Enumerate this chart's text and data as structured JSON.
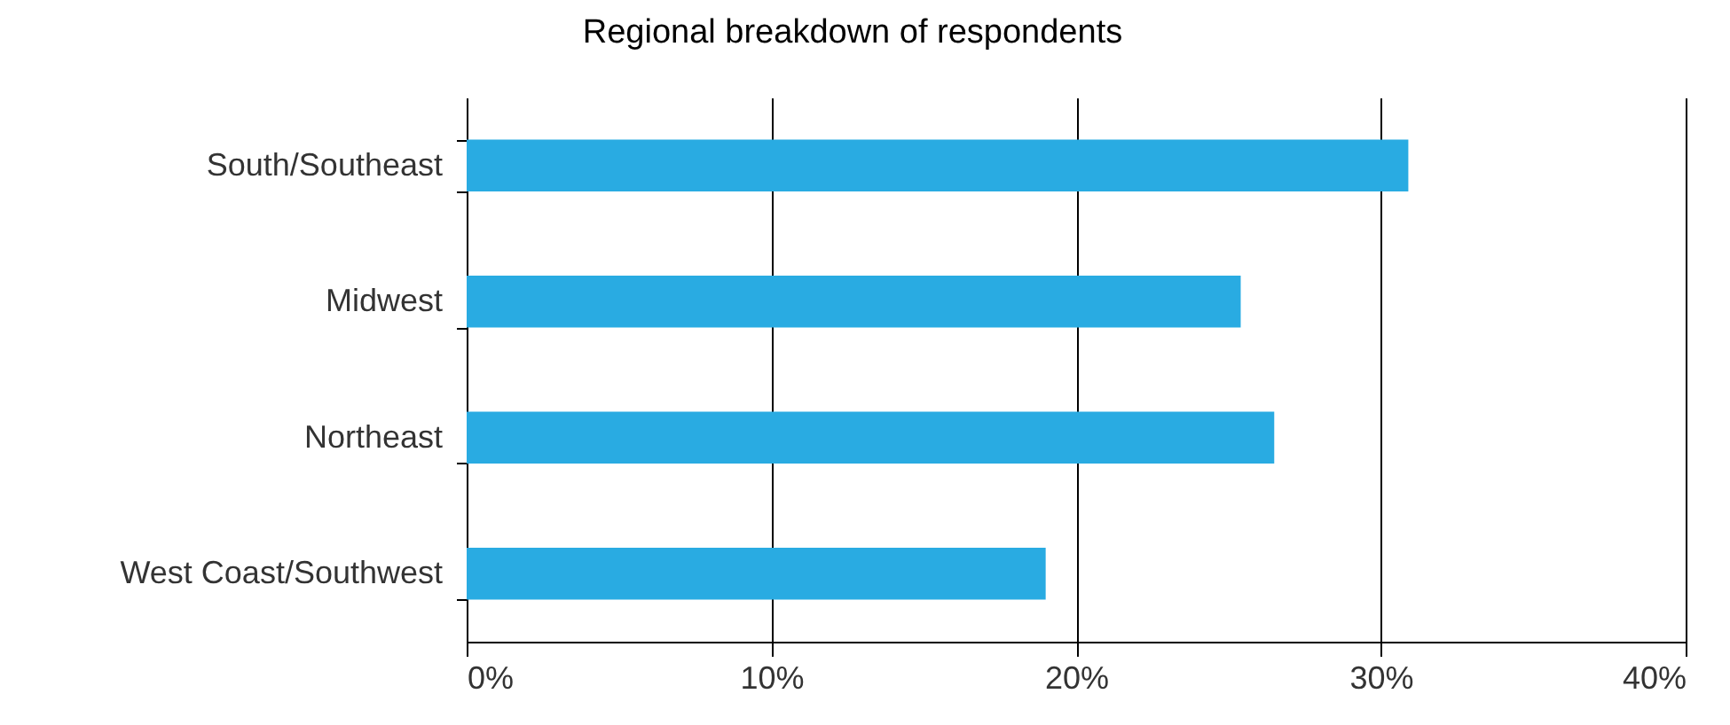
{
  "chart_data": {
    "type": "bar",
    "orientation": "horizontal",
    "title": "Regional breakdown of respondents",
    "categories": [
      "South/Southeast",
      "Midwest",
      "Northeast",
      "West Coast/Southwest"
    ],
    "values": [
      30.9,
      25.4,
      26.5,
      19.0
    ],
    "color": "#29abe2",
    "xlim": [
      0,
      40
    ],
    "xticks": [
      {
        "value": 0,
        "label": "0%"
      },
      {
        "value": 10,
        "label": "10%"
      },
      {
        "value": 20,
        "label": "20%"
      },
      {
        "value": 30,
        "label": "30%"
      },
      {
        "value": 40,
        "label": "40%"
      }
    ],
    "grid": "x"
  }
}
